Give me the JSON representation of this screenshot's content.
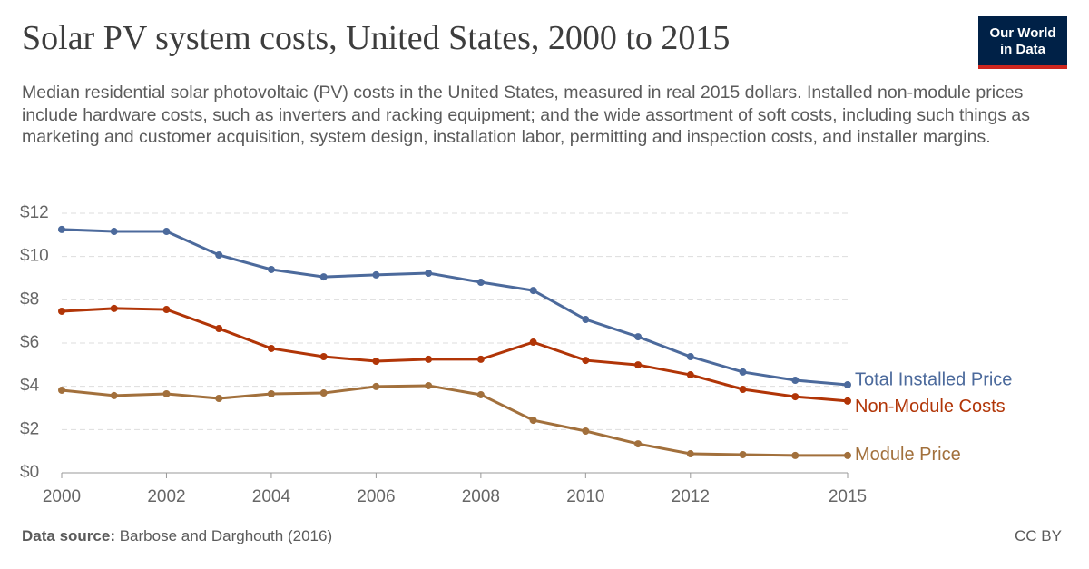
{
  "chart_data": {
    "type": "line",
    "title": "Solar PV system costs, United States, 2000 to 2015",
    "subtitle": "Median residential solar photovoltaic (PV) costs in the United States, measured in real 2015 dollars. Installed non-module prices include hardware costs, such as inverters and racking equipment; and the wide assortment of soft costs, including such things as marketing and customer acquisition, system design, installation labor, permitting and inspection costs, and installer margins.",
    "logo": [
      "Our World",
      "in Data"
    ],
    "source_label": "Data source:",
    "source": "Barbose and Darghouth (2016)",
    "license": "CC BY",
    "x": [
      2000,
      2001,
      2002,
      2003,
      2004,
      2005,
      2006,
      2007,
      2008,
      2009,
      2010,
      2011,
      2012,
      2013,
      2014,
      2015
    ],
    "xlim": [
      2000,
      2015
    ],
    "xticks": [
      2000,
      2002,
      2004,
      2006,
      2008,
      2010,
      2012,
      2015
    ],
    "ylim": [
      0,
      12
    ],
    "yticks": [
      {
        "value": 0,
        "label": "$0"
      },
      {
        "value": 2,
        "label": "$2"
      },
      {
        "value": 4,
        "label": "$4"
      },
      {
        "value": 6,
        "label": "$6"
      },
      {
        "value": 8,
        "label": "$8"
      },
      {
        "value": 10,
        "label": "$10"
      },
      {
        "value": 12,
        "label": "$12"
      }
    ],
    "grid": true,
    "series": [
      {
        "name": "Total Installed Price",
        "color": "#4c6a9c",
        "values": [
          11.25,
          11.16,
          11.16,
          10.07,
          9.4,
          9.06,
          9.15,
          9.23,
          8.81,
          8.43,
          7.09,
          6.29,
          5.37,
          4.66,
          4.28,
          4.07
        ]
      },
      {
        "name": "Non-Module Costs",
        "color": "#b13507",
        "values": [
          7.47,
          7.6,
          7.55,
          6.67,
          5.75,
          5.37,
          5.16,
          5.25,
          5.25,
          6.04,
          5.2,
          4.99,
          4.53,
          3.86,
          3.52,
          3.32
        ]
      },
      {
        "name": "Module Price",
        "color": "#a2703c",
        "values": [
          3.82,
          3.57,
          3.65,
          3.44,
          3.65,
          3.69,
          3.99,
          4.03,
          3.61,
          2.43,
          1.93,
          1.34,
          0.88,
          0.84,
          0.8,
          0.8
        ]
      }
    ]
  }
}
